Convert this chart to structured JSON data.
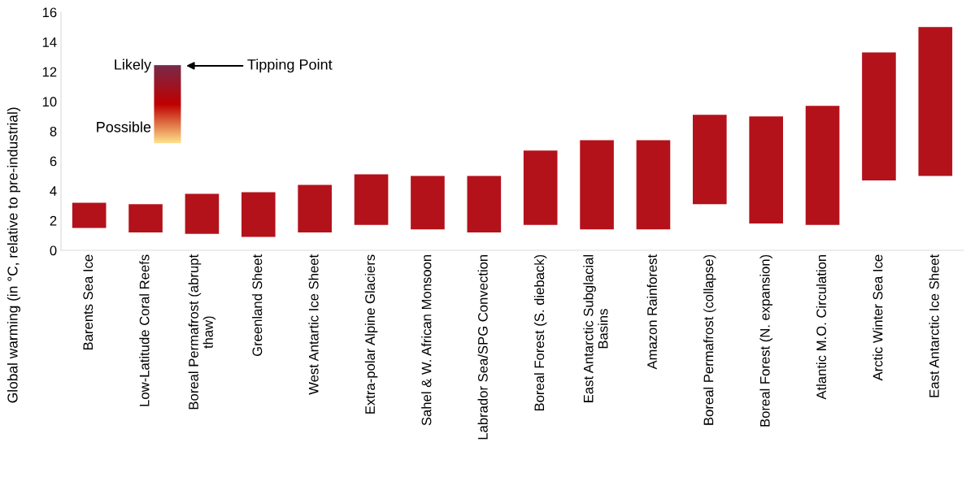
{
  "chart_data": {
    "type": "bar",
    "ylabel": "Global warming (in °C, relative to pre-industrial)",
    "categories": [
      "Barents Sea Ice",
      "Low-Latitude Coral Reefs",
      "Boreal Permafrost (abrupt\nthaw)",
      "Greenland Sheet",
      "West Antartic Ice Sheet",
      "Extra-polar Alpine Glaciers",
      "Sahel & W. African Monsoon",
      "Labrador Sea/SPG Convection",
      "Boreal Forest (S. dieback)",
      "East Antarctic Subglacial\nBasins",
      "Amazon Rainforest",
      "Boreal Permafrost (collapse)",
      "Boreal Forest (N. expansion)",
      "Atlantic M.O. Circulation",
      "Arctic Winter Sea Ice",
      "East Antarctic Ice Sheet"
    ],
    "base": [
      1.5,
      1.2,
      1.1,
      0.9,
      1.2,
      1.7,
      1.4,
      1.2,
      1.7,
      1.4,
      1.4,
      3.1,
      1.8,
      1.7,
      4.7,
      5.0
    ],
    "values": [
      1.7,
      1.9,
      2.7,
      3.0,
      3.2,
      3.4,
      3.6,
      3.8,
      5.0,
      6.0,
      6.0,
      6.0,
      7.2,
      8.0,
      8.6,
      10.0
    ],
    "color": "#b3121b",
    "ylim": [
      0,
      16
    ],
    "yticks": [
      0,
      2,
      4,
      6,
      8,
      10,
      12,
      14,
      16
    ],
    "grid": false,
    "annotations": [
      "Likely",
      "Possible",
      "Tipping Point"
    ]
  }
}
